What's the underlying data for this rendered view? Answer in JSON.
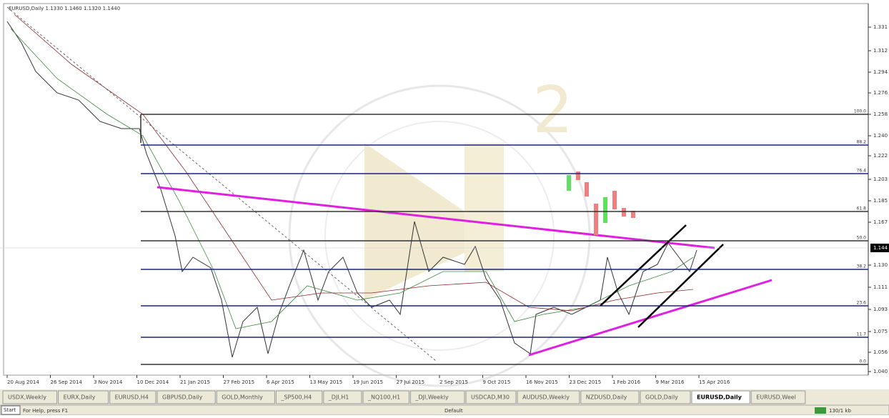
{
  "window": {
    "title": "EURUSD,Daily  1.1330 1.1460 1.1320 1.1440"
  },
  "price_axis": {
    "labels": [
      "1.331",
      "1.312",
      "1.294",
      "1.276",
      "1.258",
      "1.240",
      "1.222",
      "1.203",
      "1.185",
      "1.167",
      "1.130",
      "1.111",
      "1.093",
      "1.075",
      "1.056",
      "1.040"
    ],
    "current": "1.144"
  },
  "time_axis": {
    "labels": [
      "20 Aug 2014",
      "26 Sep 2014",
      "3 Nov 2014",
      "10 Dec 2014",
      "21 Jan 2015",
      "27 Feb 2015",
      "6 Apr 2015",
      "13 May 2015",
      "19 Jun 2015",
      "27 Jul 2015",
      "2 Sep 2015",
      "9 Oct 2015",
      "16 Nov 2015",
      "23 Dec 2015",
      "1 Feb 2016",
      "9 Mar 2016",
      "15 Apr 2016"
    ]
  },
  "fibonacci": {
    "levels": [
      "100.0",
      "88.2",
      "76.4",
      "61.8",
      "50.0",
      "38.2",
      "23.6",
      "11.7",
      "0.0"
    ]
  },
  "tabs": {
    "items": [
      "USDX,Weekly",
      "EURX,Daily",
      "EURUSD,H4",
      "GBPUSD,Daily",
      "GOLD,Monthly",
      "_SP500,H4",
      "_DJI,H1",
      "_NQ100,H1",
      "_DJI,Weekly",
      "USDCAD,M30",
      "AUDUSD,Weekly",
      "NZDUSD,Daily",
      "GOLD,Daily",
      "EURUSD,Daily",
      "EURUSD,Weel"
    ],
    "active": "EURUSD,Daily"
  },
  "status_bar": {
    "help": "For Help, press F1",
    "start": "Start",
    "profile": "Default",
    "traffic": "130/1 kb"
  }
}
